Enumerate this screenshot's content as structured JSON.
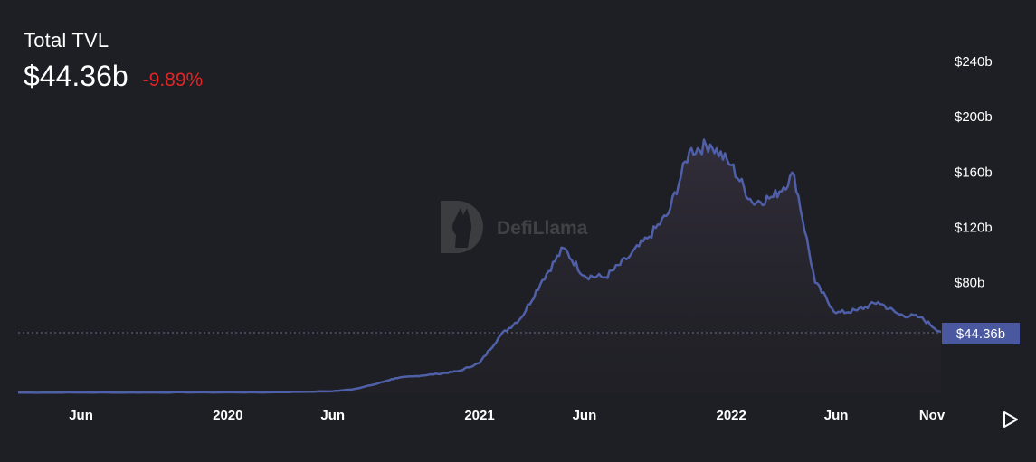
{
  "header": {
    "title": "Total TVL",
    "value": "$44.36b",
    "change": "-9.89%"
  },
  "watermark": {
    "text": "DefiLlama"
  },
  "current_label": "$44.36b",
  "colors": {
    "background": "#1e1f24",
    "line": "#4f5fa8",
    "change_negative": "#e52525",
    "current_badge": "#4a58a0"
  },
  "controls": {
    "play_icon": "play-icon"
  },
  "chart_data": {
    "type": "area",
    "title": "Total TVL",
    "xlabel": "",
    "ylabel": "",
    "x_ticks": [
      "Jun",
      "2020",
      "Jun",
      "2021",
      "Jun",
      "2022",
      "Jun",
      "Nov"
    ],
    "y_ticks": [
      "$80b",
      "$120b",
      "$160b",
      "$200b",
      "$240b"
    ],
    "ylim": [
      0,
      240
    ],
    "y_unit": "billion USD",
    "current_value": 44.36,
    "grid": false,
    "series": [
      {
        "x": [
          "2019-03",
          "2019-06",
          "2019-09",
          "2019-12",
          "2020-03",
          "2020-06",
          "2020-07",
          "2020-08",
          "2020-09",
          "2020-10",
          "2020-11",
          "2020-12",
          "2021-01",
          "2021-02",
          "2021-03",
          "2021-04",
          "2021-05",
          "2021-06",
          "2021-07",
          "2021-08",
          "2021-09",
          "2021-10",
          "2021-11",
          "2021-12",
          "2022-01",
          "2022-02",
          "2022-03",
          "2022-04",
          "2022-05",
          "2022-06",
          "2022-07",
          "2022-08",
          "2022-09",
          "2022-10",
          "2022-11"
        ],
        "values": [
          0.5,
          0.6,
          0.6,
          0.7,
          0.7,
          1.5,
          3.0,
          6.5,
          11.0,
          12.5,
          14.0,
          16.0,
          22.0,
          42.0,
          55.0,
          82.0,
          105.0,
          85.0,
          84.0,
          97.0,
          112.0,
          130.0,
          175.0,
          180.0,
          165.0,
          138.0,
          142.0,
          158.0,
          80.0,
          58.0,
          60.0,
          66.0,
          57.0,
          55.0,
          44.36
        ]
      }
    ]
  }
}
